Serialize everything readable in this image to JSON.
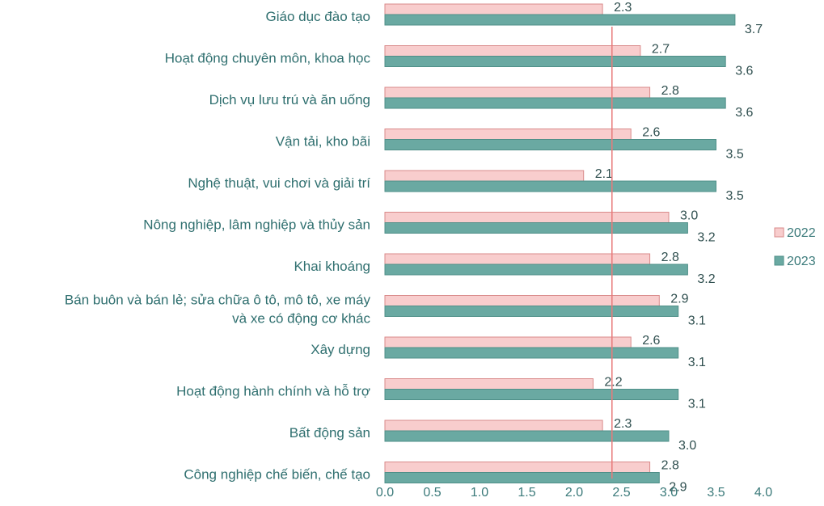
{
  "chart_data": {
    "type": "bar",
    "orientation": "horizontal",
    "categories": [
      "Giáo dục đào tạo",
      "Hoạt động chuyên môn, khoa học",
      "Dịch vụ lưu trú và ăn uống",
      "Vận tải, kho bãi",
      "Nghệ thuật, vui chơi và giải trí",
      "Nông nghiệp, lâm nghiệp và thủy sản",
      "Khai khoáng",
      "Bán buôn và bán lẻ; sửa chữa ô tô, mô tô, xe máy và xe có động cơ khác",
      "Xây dựng",
      "Hoạt động hành chính và hỗ trợ",
      "Bất động sản",
      "Công nghiệp chế biến, chế tạo"
    ],
    "category_lines": [
      [
        "Giáo dục đào tạo"
      ],
      [
        "Hoạt động chuyên môn, khoa học"
      ],
      [
        "Dịch vụ lưu trú và ăn uống"
      ],
      [
        "Vận tải, kho bãi"
      ],
      [
        "Nghệ thuật, vui chơi và giải trí"
      ],
      [
        "Nông nghiệp, lâm nghiệp và thủy sản"
      ],
      [
        "Khai khoáng"
      ],
      [
        "Bán buôn và bán lẻ; sửa chữa ô tô, mô tô, xe máy",
        "và xe có động cơ khác"
      ],
      [
        "Xây dựng"
      ],
      [
        "Hoạt động hành chính và hỗ trợ"
      ],
      [
        "Bất động sản"
      ],
      [
        "Công nghiệp chế biến, chế tạo"
      ]
    ],
    "series": [
      {
        "name": "2022",
        "color": "#f8cdcd",
        "stroke": "#d98a8a",
        "values": [
          2.3,
          2.7,
          2.8,
          2.6,
          2.1,
          3.0,
          2.8,
          2.9,
          2.6,
          2.2,
          2.3,
          2.8
        ],
        "labels": [
          "2.3",
          "2.7",
          "2.8",
          "2.6",
          "2.1",
          "3.0",
          "2.8",
          "2.9",
          "2.6",
          "2.2",
          "2.3",
          "2.8"
        ]
      },
      {
        "name": "2023",
        "color": "#6aa9a2",
        "stroke": "#4f8f88",
        "values": [
          3.7,
          3.6,
          3.6,
          3.5,
          3.5,
          3.2,
          3.2,
          3.1,
          3.1,
          3.1,
          3.0,
          2.9
        ],
        "labels": [
          "3.7",
          "3.6",
          "3.6",
          "3.5",
          "3.5",
          "3.2",
          "3.2",
          "3.1",
          "3.1",
          "3.1",
          "3.0",
          "2.9"
        ]
      }
    ],
    "xlim": [
      0,
      4.0
    ],
    "xticks": [
      "0.0",
      "0.5",
      "1.0",
      "1.5",
      "2.0",
      "2.5",
      "3.0",
      "3.5",
      "4.0"
    ],
    "reference_line": {
      "value": 2.4,
      "color": "#e87a7a"
    },
    "grid": false,
    "legend_position": "right"
  }
}
